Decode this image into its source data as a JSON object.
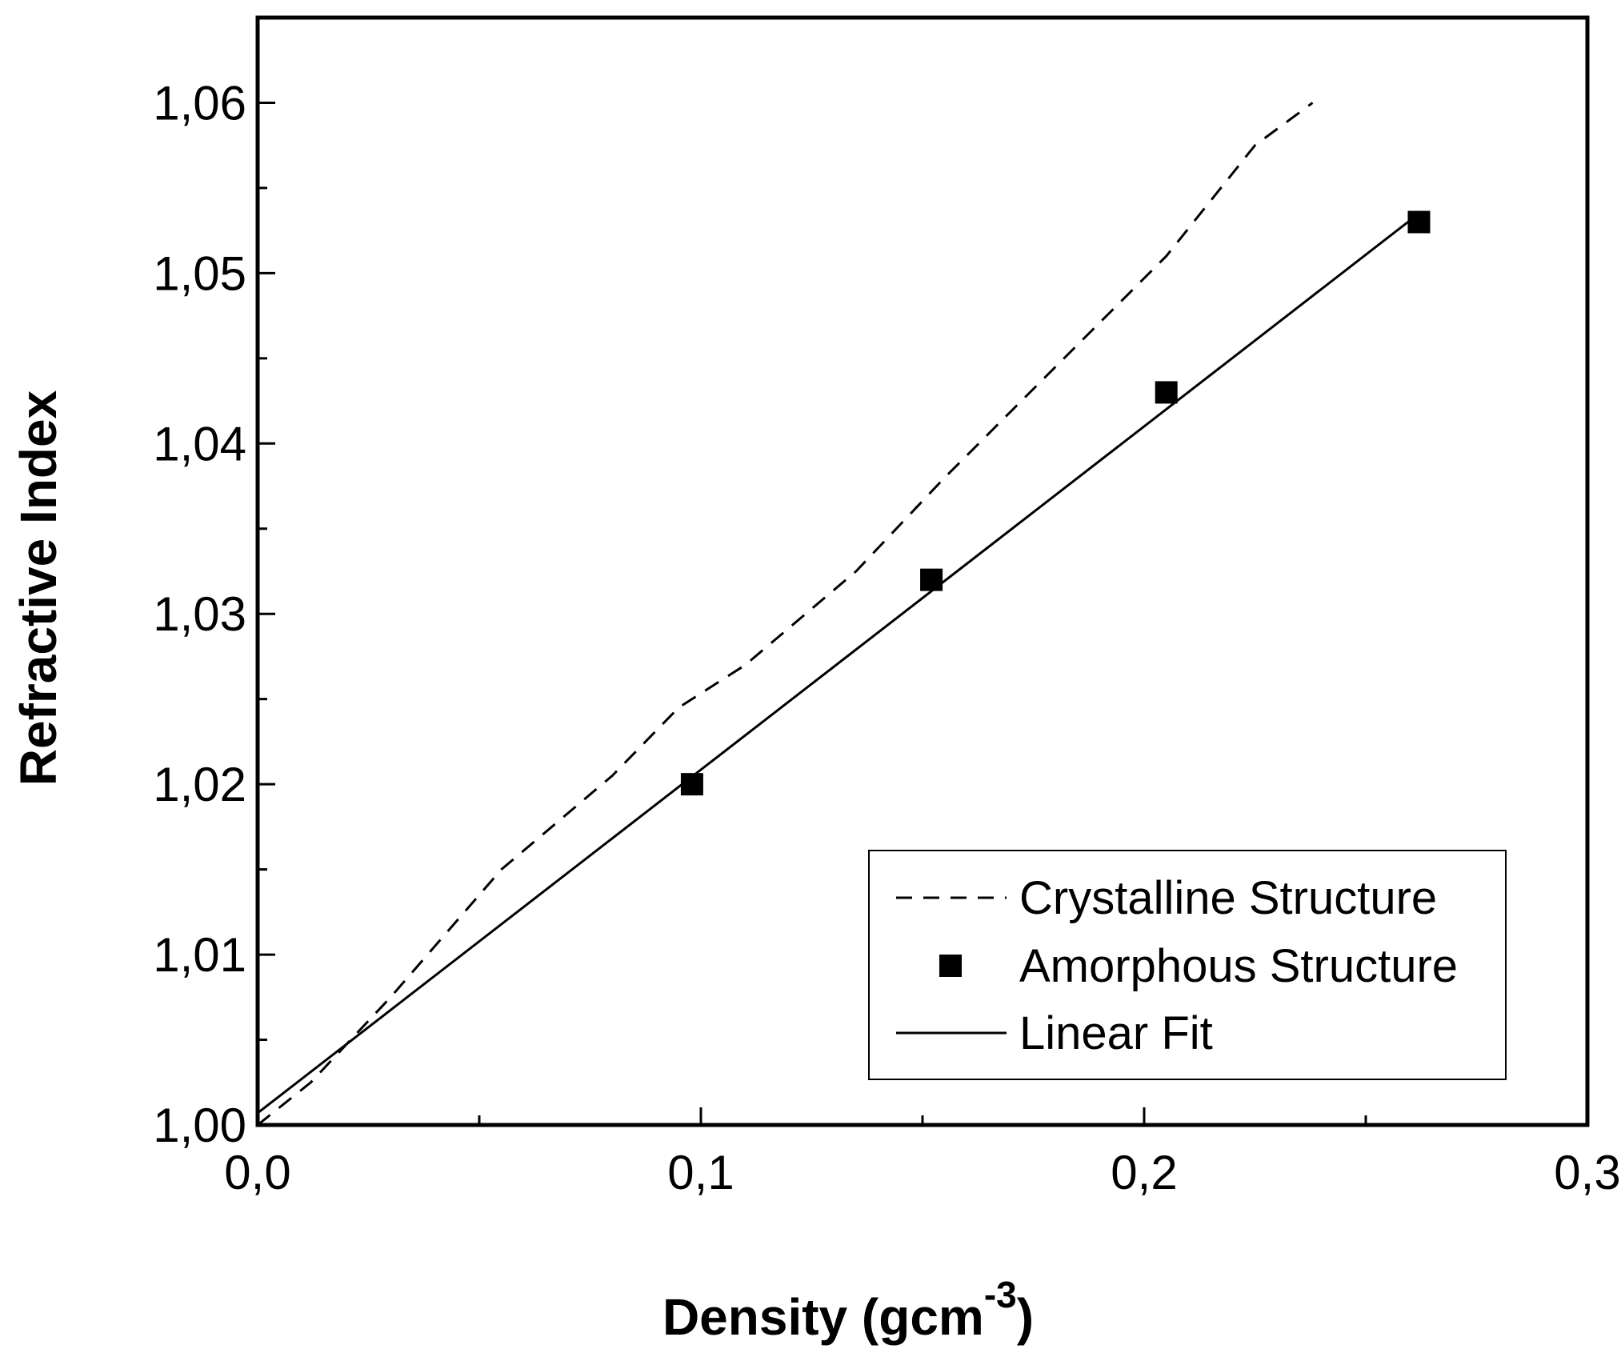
{
  "chart_data": {
    "type": "line",
    "xlabel": "Density (gcm",
    "xlabel_superscript": "-3",
    "xlabel_close": ")",
    "ylabel": "Refractive Index",
    "xlim": [
      0,
      0.3
    ],
    "ylim": [
      1.0,
      1.065
    ],
    "x_major_ticks": [
      0,
      0.1,
      0.2,
      0.3
    ],
    "x_tick_labels": [
      "0,0",
      "0,1",
      "0,2",
      "0,3"
    ],
    "x_minor_ticks": [
      0.05,
      0.15,
      0.25
    ],
    "y_major_ticks": [
      1.0,
      1.01,
      1.02,
      1.03,
      1.04,
      1.05,
      1.06
    ],
    "y_tick_labels": [
      "1,00",
      "1,01",
      "1,02",
      "1,03",
      "1,04",
      "1,05",
      "1,06"
    ],
    "y_minor_ticks": [
      1.005,
      1.015,
      1.025,
      1.035,
      1.045,
      1.055
    ],
    "legend_position": "bottom-right",
    "series": [
      {
        "name": "Crystalline Structure",
        "style": "dashed",
        "x": [
          0.0,
          0.012,
          0.03,
          0.055,
          0.08,
          0.095,
          0.11,
          0.135,
          0.155,
          0.18,
          0.205,
          0.225,
          0.238
        ],
        "y": [
          1.0,
          1.0025,
          1.0075,
          1.015,
          1.0205,
          1.0245,
          1.027,
          1.0325,
          1.038,
          1.0445,
          1.051,
          1.0575,
          1.06
        ]
      },
      {
        "name": "Amorphous Structure",
        "style": "markers",
        "marker": "square",
        "x": [
          0.098,
          0.152,
          0.205,
          0.262
        ],
        "y": [
          1.02,
          1.032,
          1.043,
          1.053
        ]
      },
      {
        "name": "Linear Fit",
        "style": "solid",
        "x": [
          0.0,
          0.262
        ],
        "y": [
          1.0007,
          1.0535
        ]
      }
    ]
  },
  "colors": {
    "line": "#000000",
    "background": "#ffffff"
  }
}
